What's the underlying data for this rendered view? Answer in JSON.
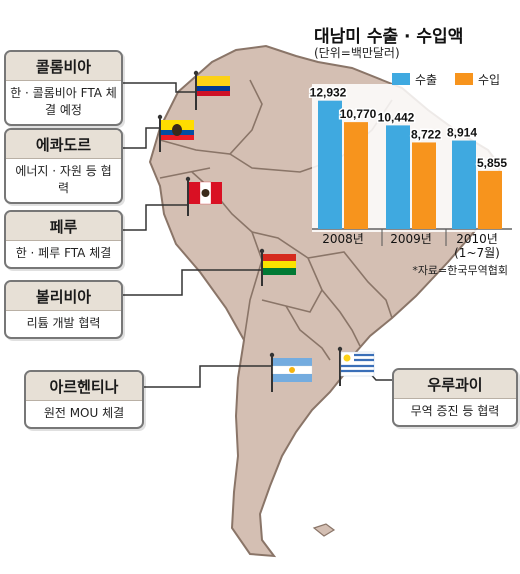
{
  "chart_data": {
    "type": "bar",
    "title": "대남미 수출 · 수입액",
    "unit_label": "(단위=백만달러)",
    "categories": [
      "2008년",
      "2009년",
      "2010년\n(1~7월)"
    ],
    "series": [
      {
        "name": "수출",
        "values": [
          12932,
          10442,
          8914
        ],
        "value_labels": [
          "12,932",
          "10,442",
          "8,914"
        ],
        "color": "#3fa9e0"
      },
      {
        "name": "수입",
        "values": [
          10770,
          8722,
          5855
        ],
        "value_labels": [
          "10,770",
          "8,722",
          "5,855"
        ],
        "color": "#f7941d"
      }
    ],
    "ylim": [
      0,
      13000
    ],
    "legend_position": "top",
    "source": "*자료=한국무역협회"
  },
  "countries": [
    {
      "id": "colombia",
      "name": "콜롬비아",
      "desc": "한 · 콜롬비아 FTA 체결 예정",
      "flag": "colombia-flag"
    },
    {
      "id": "ecuador",
      "name": "에콰도르",
      "desc": "에너지 · 자원 등 협력",
      "flag": "ecuador-flag"
    },
    {
      "id": "peru",
      "name": "페루",
      "desc": "한 · 페루 FTA 체결",
      "flag": "peru-flag"
    },
    {
      "id": "bolivia",
      "name": "볼리비아",
      "desc": "리튬 개발 협력",
      "flag": "bolivia-flag"
    },
    {
      "id": "argentina",
      "name": "아르헨티나",
      "desc": "원전 MOU 체결",
      "flag": "argentina-flag"
    },
    {
      "id": "uruguay",
      "name": "우루과이",
      "desc": "무역 증진 등 협력",
      "flag": "uruguay-flag"
    }
  ],
  "colors": {
    "land": "#d4bfb3",
    "border": "#8a7568",
    "sea": "#ffffff",
    "callout_header": "#e7e0d6"
  }
}
